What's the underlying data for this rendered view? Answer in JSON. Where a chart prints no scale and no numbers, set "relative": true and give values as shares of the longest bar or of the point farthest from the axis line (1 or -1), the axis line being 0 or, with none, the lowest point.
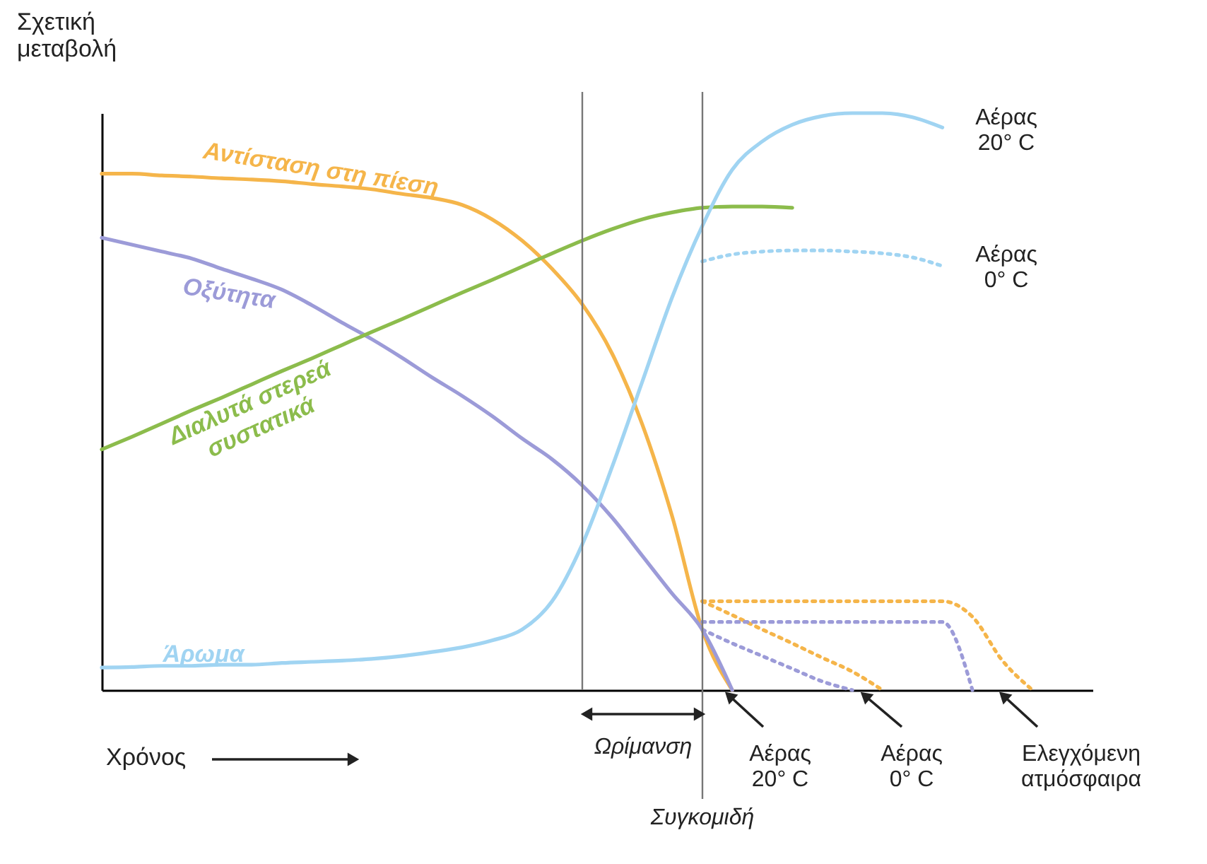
{
  "chart_data": {
    "type": "line",
    "relative": true,
    "xlabel": "Χρόνος",
    "ylabel": "Σχετική\nμεταβολή",
    "categories": [
      null,
      null,
      null,
      null,
      null,
      null,
      null,
      null,
      null,
      null,
      null,
      null,
      null,
      null,
      null,
      null,
      null,
      null,
      null,
      null,
      null,
      null,
      null,
      null,
      null,
      null,
      null,
      null,
      null,
      null,
      null,
      null,
      null,
      null
    ],
    "series": [
      {
        "name": "Αντίσταση στη πίεση",
        "color": "#f5b54a",
        "values": [
          0.895,
          0.895,
          0.892,
          0.89,
          0.887,
          0.885,
          0.882,
          0.877,
          0.873,
          0.868,
          0.86,
          0.853,
          0.841,
          0.816,
          0.779,
          0.73,
          0.669,
          0.583,
          0.461,
          0.301,
          0.105,
          0,
          null,
          null,
          null,
          null,
          null,
          null,
          null,
          null,
          null,
          null,
          null,
          null
        ]
      },
      {
        "name": "Οξύτητα",
        "color": "#9c9bd8",
        "values": [
          0.784,
          0.772,
          0.76,
          0.748,
          0.73,
          0.713,
          0.694,
          0.667,
          0.637,
          0.608,
          0.576,
          0.542,
          0.51,
          0.475,
          0.436,
          0.4,
          0.355,
          0.299,
          0.233,
          0.167,
          0.105,
          0,
          null,
          null,
          null,
          null,
          null,
          null,
          null,
          null,
          null,
          null,
          null,
          null
        ]
      },
      {
        "name": "Διαλυτά στερεά\nσυστατικά",
        "color": "#8cbc4c",
        "values": [
          0.417,
          0.439,
          0.462,
          0.485,
          0.507,
          0.53,
          0.553,
          0.575,
          0.598,
          0.621,
          0.643,
          0.666,
          0.689,
          0.711,
          0.734,
          0.757,
          0.779,
          0.799,
          0.816,
          0.828,
          0.836,
          0.838,
          0.838,
          0.836,
          null,
          null,
          null,
          null,
          null,
          null,
          null,
          null,
          null,
          null
        ]
      },
      {
        "name": "Άρωμα",
        "color": "#a0d4f2",
        "values": [
          0.039,
          0.04,
          0.042,
          0.042,
          0.044,
          0.044,
          0.047,
          0.049,
          0.051,
          0.054,
          0.059,
          0.066,
          0.074,
          0.086,
          0.105,
          0.154,
          0.252,
          0.387,
          0.534,
          0.681,
          0.804,
          0.902,
          0.951,
          0.98,
          0.995,
          1,
          1,
          0.993,
          0.975,
          null,
          null,
          null,
          null,
          null
        ]
      },
      {
        "color": "#a0d4f2",
        "line_style": "dotted",
        "values": [
          null,
          null,
          null,
          null,
          null,
          null,
          null,
          null,
          null,
          null,
          null,
          null,
          null,
          null,
          null,
          null,
          null,
          null,
          null,
          null,
          0.743,
          0.755,
          0.76,
          0.762,
          0.762,
          0.76,
          0.757,
          0.75,
          0.735,
          null,
          null,
          null,
          null,
          null
        ]
      },
      {
        "color": "#f5b54a",
        "line_style": "dotted",
        "values": [
          null,
          null,
          null,
          null,
          null,
          null,
          null,
          null,
          null,
          null,
          null,
          null,
          null,
          null,
          null,
          null,
          null,
          null,
          null,
          null,
          0.154,
          0.13,
          0.105,
          0.081,
          0.056,
          0.032,
          0,
          null,
          null,
          null,
          null,
          null,
          null,
          null
        ]
      },
      {
        "color": "#f5b54a",
        "line_style": "dotted",
        "values": [
          null,
          null,
          null,
          null,
          null,
          null,
          null,
          null,
          null,
          null,
          null,
          null,
          null,
          null,
          null,
          null,
          null,
          null,
          null,
          null,
          0.154,
          0.154,
          0.154,
          0.154,
          0.154,
          0.154,
          0.154,
          0.154,
          0.154,
          0.127,
          0.051,
          0,
          null,
          null
        ]
      },
      {
        "color": "#9c9bd8",
        "line_style": "dotted",
        "values": [
          null,
          null,
          null,
          null,
          null,
          null,
          null,
          null,
          null,
          null,
          null,
          null,
          null,
          null,
          null,
          null,
          null,
          null,
          null,
          null,
          0.105,
          0.081,
          0.059,
          0.037,
          0.015,
          0,
          null,
          null,
          null,
          null,
          null,
          null,
          null,
          null
        ]
      },
      {
        "color": "#9c9bd8",
        "line_style": "dotted",
        "values": [
          null,
          null,
          null,
          null,
          null,
          null,
          null,
          null,
          null,
          null,
          null,
          null,
          null,
          null,
          null,
          null,
          null,
          null,
          null,
          null,
          0.118,
          0.118,
          0.118,
          0.118,
          0.118,
          0.118,
          0.118,
          0.118,
          0.118,
          0,
          null,
          null,
          null,
          null
        ]
      }
    ],
    "annotations": [
      "Ωρίμανση",
      "Αέρας\n20° C",
      "Αέρας\n0° C",
      "Αέρας\n20° C",
      "Αέρας\n0° C",
      "Ελεγχόμενη\nατμόσφαιρα",
      "Συγκομιδή"
    ]
  }
}
